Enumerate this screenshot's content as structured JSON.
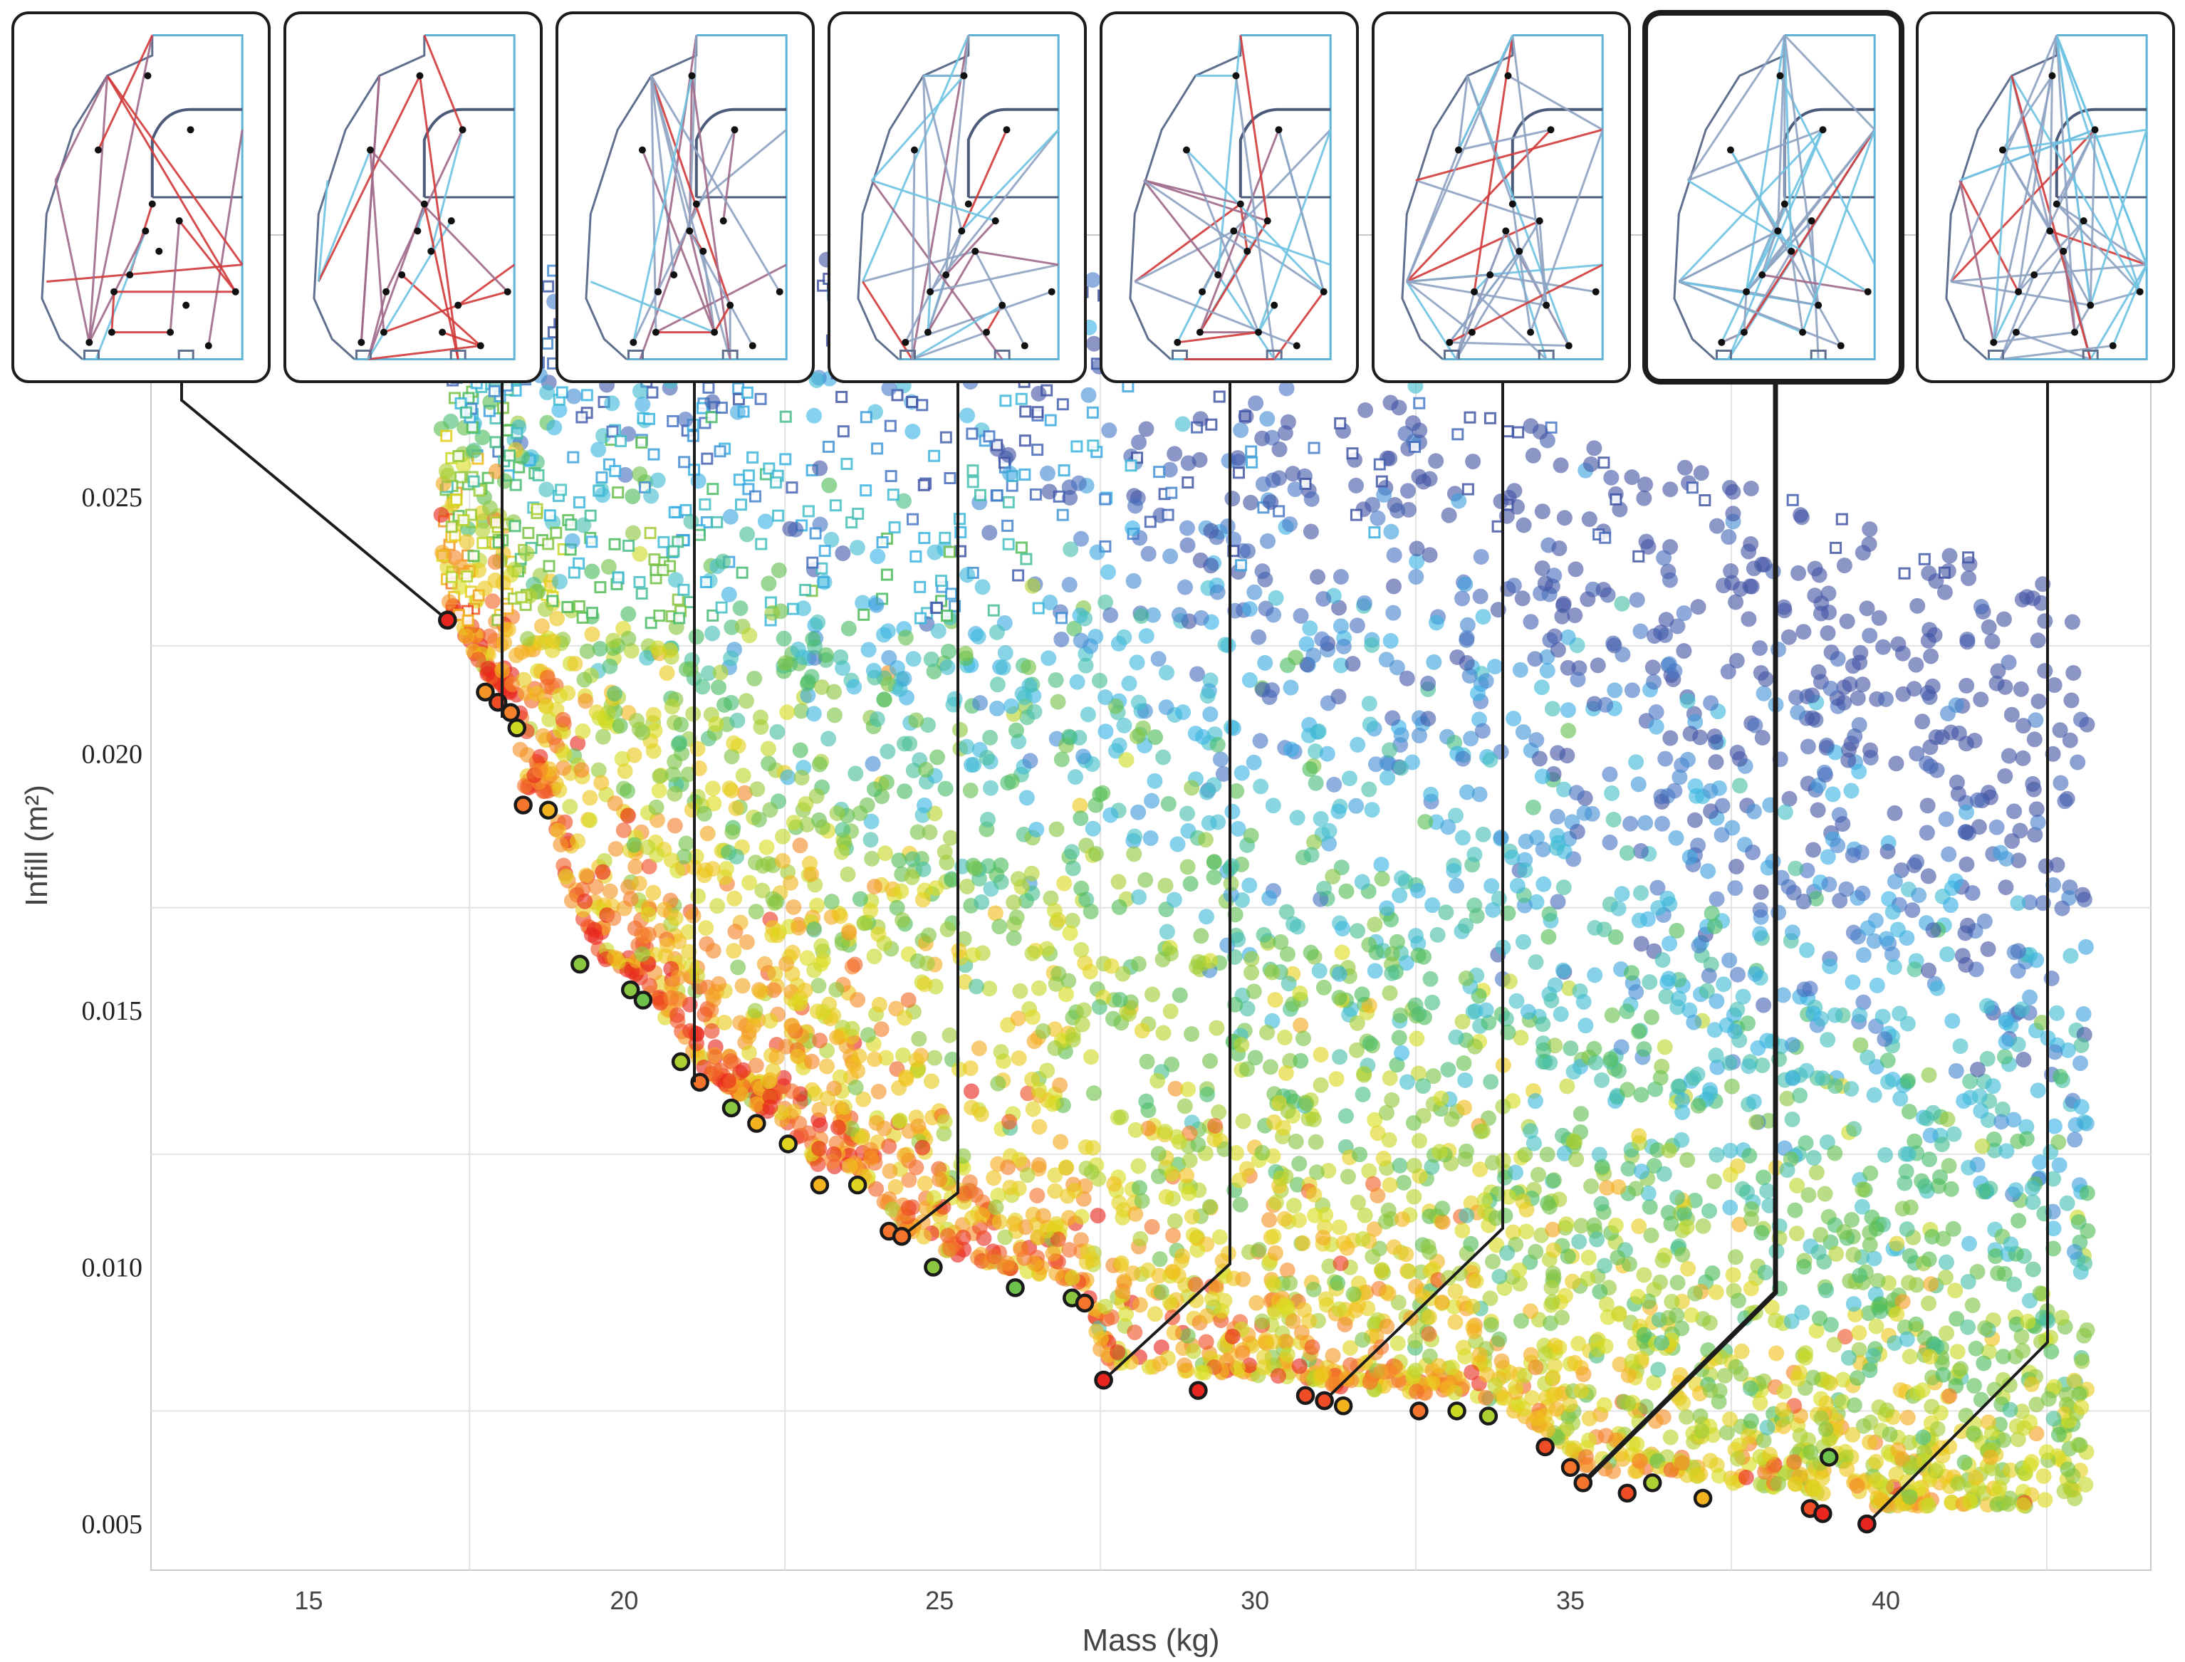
{
  "chart_data": {
    "type": "scatter",
    "title": "",
    "xlabel": "Mass (kg)",
    "ylabel": "Infill (m²)",
    "xlim": [
      12.5,
      44.2
    ],
    "ylim": [
      0.0041,
      0.0301
    ],
    "xticks": [
      15,
      20,
      25,
      30,
      35,
      40
    ],
    "xtick_labels": [
      "15",
      "20",
      "25",
      "30",
      "35",
      "40"
    ],
    "yticks": [
      0.005,
      0.01,
      0.015,
      0.02,
      0.025
    ],
    "ytick_labels": [
      "0.005",
      "0.010",
      "0.015",
      "0.020",
      "0.025"
    ],
    "grid": true,
    "color_scale": [
      "#e8261f",
      "#f57d2c",
      "#f2c01b",
      "#d8de1f",
      "#8ec63f",
      "#4cbc5a",
      "#45c0c8",
      "#39b3e6",
      "#4b7bc9",
      "#4356a5"
    ],
    "cloud_point_count": 5200,
    "pareto_front": [
      {
        "x": 17.2,
        "y": 0.0226,
        "c": 0.0
      },
      {
        "x": 17.8,
        "y": 0.0212,
        "c": 0.15
      },
      {
        "x": 18.0,
        "y": 0.021,
        "c": 0.05
      },
      {
        "x": 18.2,
        "y": 0.0208,
        "c": 0.12
      },
      {
        "x": 18.3,
        "y": 0.0205,
        "c": 0.35
      },
      {
        "x": 18.4,
        "y": 0.019,
        "c": 0.1
      },
      {
        "x": 18.8,
        "y": 0.0189,
        "c": 0.2
      },
      {
        "x": 19.3,
        "y": 0.0159,
        "c": 0.45
      },
      {
        "x": 20.1,
        "y": 0.0154,
        "c": 0.45
      },
      {
        "x": 20.3,
        "y": 0.0152,
        "c": 0.5
      },
      {
        "x": 20.9,
        "y": 0.014,
        "c": 0.4
      },
      {
        "x": 21.2,
        "y": 0.0136,
        "c": 0.1
      },
      {
        "x": 21.7,
        "y": 0.0131,
        "c": 0.45
      },
      {
        "x": 22.1,
        "y": 0.0128,
        "c": 0.2
      },
      {
        "x": 22.6,
        "y": 0.0124,
        "c": 0.3
      },
      {
        "x": 23.1,
        "y": 0.0116,
        "c": 0.2
      },
      {
        "x": 23.7,
        "y": 0.0116,
        "c": 0.3
      },
      {
        "x": 24.2,
        "y": 0.0107,
        "c": 0.1
      },
      {
        "x": 24.9,
        "y": 0.01,
        "c": 0.45
      },
      {
        "x": 26.2,
        "y": 0.0096,
        "c": 0.5
      },
      {
        "x": 27.1,
        "y": 0.0094,
        "c": 0.45
      },
      {
        "x": 27.3,
        "y": 0.0093,
        "c": 0.1
      },
      {
        "x": 27.6,
        "y": 0.0078,
        "c": 0.0
      },
      {
        "x": 29.1,
        "y": 0.0076,
        "c": 0.0
      },
      {
        "x": 30.8,
        "y": 0.0075,
        "c": 0.05
      },
      {
        "x": 31.1,
        "y": 0.0074,
        "c": 0.0
      },
      {
        "x": 31.4,
        "y": 0.0073,
        "c": 0.2
      },
      {
        "x": 32.6,
        "y": 0.0072,
        "c": 0.1
      },
      {
        "x": 33.2,
        "y": 0.0072,
        "c": 0.35
      },
      {
        "x": 33.7,
        "y": 0.0071,
        "c": 0.4
      },
      {
        "x": 34.6,
        "y": 0.0065,
        "c": 0.05
      },
      {
        "x": 35.0,
        "y": 0.0061,
        "c": 0.1
      },
      {
        "x": 35.2,
        "y": 0.0058,
        "c": 0.05
      },
      {
        "x": 35.9,
        "y": 0.0056,
        "c": 0.05
      },
      {
        "x": 36.3,
        "y": 0.0058,
        "c": 0.4
      },
      {
        "x": 37.1,
        "y": 0.0055,
        "c": 0.2
      },
      {
        "x": 38.8,
        "y": 0.0053,
        "c": 0.05
      },
      {
        "x": 39.0,
        "y": 0.0052,
        "c": 0.0
      },
      {
        "x": 39.1,
        "y": 0.0063,
        "c": 0.5
      },
      {
        "x": 39.7,
        "y": 0.005,
        "c": 0.0
      }
    ],
    "callouts": [
      {
        "x": 17.2,
        "y": 0.0226,
        "panel": 0
      },
      {
        "x": 24.4,
        "y": 0.0106,
        "panel": 3
      },
      {
        "x": 27.6,
        "y": 0.0078,
        "panel": 4
      },
      {
        "x": 31.1,
        "y": 0.0074,
        "panel": 5
      },
      {
        "x": 35.2,
        "y": 0.0058,
        "panel": 6
      },
      {
        "x": 39.7,
        "y": 0.005,
        "panel": 7
      }
    ],
    "vertical_leaders": [
      {
        "panel": 1,
        "y": 0.0207
      },
      {
        "panel": 2,
        "y": 0.0136
      }
    ],
    "panels": [
      {
        "complexity": 0.15,
        "redness": 0.85,
        "highlighted": false
      },
      {
        "complexity": 0.25,
        "redness": 0.75,
        "highlighted": false
      },
      {
        "complexity": 0.35,
        "redness": 0.55,
        "highlighted": false
      },
      {
        "complexity": 0.45,
        "redness": 0.4,
        "highlighted": false
      },
      {
        "complexity": 0.55,
        "redness": 0.3,
        "highlighted": false
      },
      {
        "complexity": 0.68,
        "redness": 0.2,
        "highlighted": false
      },
      {
        "complexity": 0.82,
        "redness": 0.1,
        "highlighted": true
      },
      {
        "complexity": 0.95,
        "redness": 0.05,
        "highlighted": false
      }
    ]
  }
}
